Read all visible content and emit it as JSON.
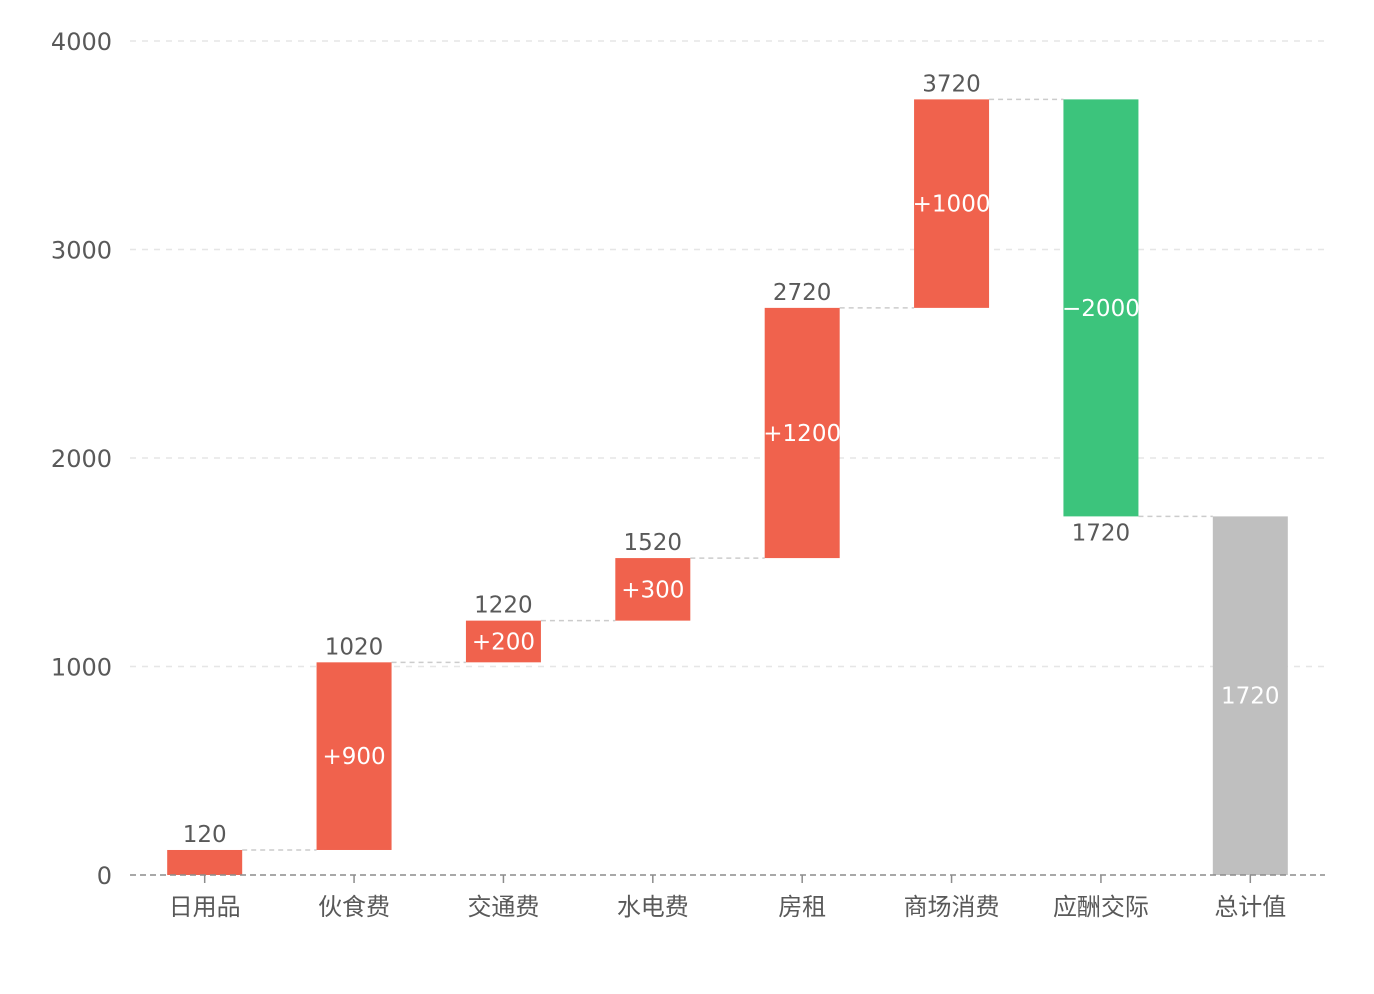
{
  "chart_data": {
    "type": "bar",
    "subtype": "waterfall",
    "categories": [
      "日用品",
      "伙食费",
      "交通费",
      "水电费",
      "房租",
      "商场消费",
      "应酬交际",
      "总计值"
    ],
    "bars": [
      {
        "category": "日用品",
        "start": 0,
        "end": 120,
        "kind": "increase",
        "top_label": "120",
        "inner_label": ""
      },
      {
        "category": "伙食费",
        "start": 120,
        "end": 1020,
        "kind": "increase",
        "top_label": "1020",
        "inner_label": "+900"
      },
      {
        "category": "交通费",
        "start": 1020,
        "end": 1220,
        "kind": "increase",
        "top_label": "1220",
        "inner_label": "+200"
      },
      {
        "category": "水电费",
        "start": 1220,
        "end": 1520,
        "kind": "increase",
        "top_label": "1520",
        "inner_label": "+300"
      },
      {
        "category": "房租",
        "start": 1520,
        "end": 2720,
        "kind": "increase",
        "top_label": "2720",
        "inner_label": "+1200"
      },
      {
        "category": "商场消费",
        "start": 2720,
        "end": 3720,
        "kind": "increase",
        "top_label": "3720",
        "inner_label": "+1000"
      },
      {
        "category": "应酬交际",
        "start": 3720,
        "end": 1720,
        "kind": "decrease",
        "bottom_label": "1720",
        "inner_label": "−2000"
      },
      {
        "category": "总计值",
        "start": 0,
        "end": 1720,
        "kind": "total",
        "inner_label": "1720"
      }
    ],
    "y_ticks": [
      "0",
      "1000",
      "2000",
      "3000",
      "4000"
    ],
    "ylim": [
      0,
      4000
    ],
    "grid": true,
    "title": "",
    "xlabel": "",
    "ylabel": "",
    "colors": {
      "increase": "#f0624d",
      "decrease": "#3cc47c",
      "total": "#bfbfbf",
      "grid": "#e6e6e6",
      "connector": "#cccccc",
      "axis": "#8c8c8c"
    }
  }
}
